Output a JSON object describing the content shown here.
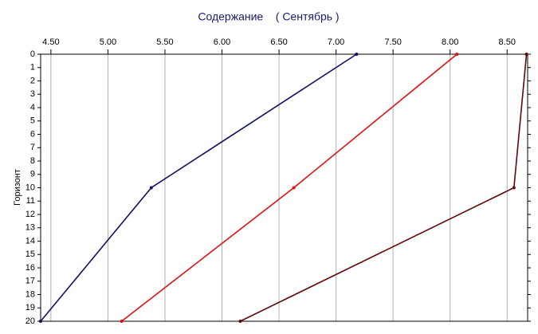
{
  "chart_data": {
    "type": "line",
    "title": "Содержание    ( Сентябрь )",
    "y_label": "Горизонт",
    "y": [
      0,
      10,
      20
    ],
    "series": [
      {
        "color": "#101060",
        "values": [
          7.18,
          5.38,
          4.41
        ]
      },
      {
        "color": "#e01010",
        "values": [
          8.06,
          6.63,
          5.12
        ]
      },
      {
        "color": "#600808",
        "values": [
          8.67,
          8.56,
          6.16
        ]
      }
    ],
    "xlim": [
      4.41,
      8.68
    ],
    "xticks": [
      {
        "value": 4.5,
        "label": "4.50"
      },
      {
        "value": 5,
        "label": "5.00"
      },
      {
        "value": 5.5,
        "label": "5.50"
      },
      {
        "value": 6,
        "label": "6.00"
      },
      {
        "value": 6.5,
        "label": "6.50"
      },
      {
        "value": 7,
        "label": "7.00"
      },
      {
        "value": 7.5,
        "label": "7.50"
      },
      {
        "value": 8,
        "label": "8.00"
      },
      {
        "value": 8.5,
        "label": "8.50"
      }
    ],
    "ylim": [
      0,
      20
    ],
    "yticks": [
      0,
      1,
      2,
      3,
      4,
      5,
      6,
      7,
      8,
      9,
      10,
      11,
      12,
      13,
      14,
      15,
      16,
      17,
      18,
      19,
      20
    ],
    "grid": true
  }
}
